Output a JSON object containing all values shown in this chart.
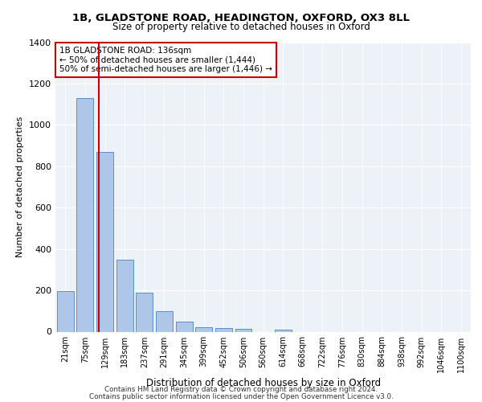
{
  "title1": "1B, GLADSTONE ROAD, HEADINGTON, OXFORD, OX3 8LL",
  "title2": "Size of property relative to detached houses in Oxford",
  "xlabel": "Distribution of detached houses by size in Oxford",
  "ylabel": "Number of detached properties",
  "bar_labels": [
    "21sqm",
    "75sqm",
    "129sqm",
    "183sqm",
    "237sqm",
    "291sqm",
    "345sqm",
    "399sqm",
    "452sqm",
    "506sqm",
    "560sqm",
    "614sqm",
    "668sqm",
    "722sqm",
    "776sqm",
    "830sqm",
    "884sqm",
    "938sqm",
    "992sqm",
    "1046sqm",
    "1100sqm"
  ],
  "bar_values": [
    195,
    1130,
    870,
    350,
    190,
    100,
    50,
    20,
    18,
    15,
    0,
    10,
    0,
    0,
    0,
    0,
    0,
    0,
    0,
    0,
    0
  ],
  "bar_color": "#aec6e8",
  "bar_edgecolor": "#5b8fc9",
  "redline_color": "#cc0000",
  "property_size": 136,
  "bin_start_sqm": [
    21,
    75,
    129,
    183,
    237,
    291,
    345,
    399,
    452,
    506,
    560,
    614,
    668,
    722,
    776,
    830,
    884,
    938,
    992,
    1046,
    1100
  ],
  "annotation_text": "1B GLADSTONE ROAD: 136sqm\n← 50% of detached houses are smaller (1,444)\n50% of semi-detached houses are larger (1,446) →",
  "ylim": [
    0,
    1400
  ],
  "yticks": [
    0,
    200,
    400,
    600,
    800,
    1000,
    1200,
    1400
  ],
  "background_color": "#edf2f9",
  "footer1": "Contains HM Land Registry data © Crown copyright and database right 2024.",
  "footer2": "Contains public sector information licensed under the Open Government Licence v3.0."
}
